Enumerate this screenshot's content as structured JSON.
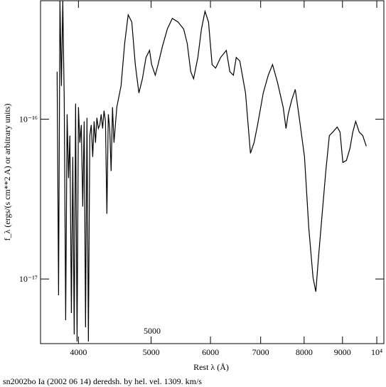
{
  "chart_data": {
    "type": "line",
    "x_scale": "log",
    "y_scale": "log",
    "x_label": "Rest λ (Å)",
    "y_label": "f_λ (ergs/(s cm**2 A) or arbitrary units)",
    "caption": "sn2002bo Ia (2002 06 14) deredsh. by hel. vel.  1309. km/s",
    "annotation": "5000",
    "xlim": [
      3560,
      10220
    ],
    "ylim": [
      3.94e-18,
      5.52e-16
    ],
    "xticks": [
      4000,
      5000,
      6000,
      7000,
      8000,
      9000,
      {
        "value": 10000,
        "label": "10⁴"
      }
    ],
    "yticks": [
      {
        "value": 1e-17,
        "label": "10⁻¹⁷"
      },
      {
        "value": 1e-16,
        "label": "10⁻¹⁶"
      }
    ],
    "series": [
      {
        "color": "#000000",
        "x": [
          3746,
          3763,
          3779,
          3796,
          3812,
          3829,
          3846,
          3863,
          3880,
          3896,
          3914,
          3931,
          3948,
          3965,
          3983,
          4000,
          4017,
          4035,
          4053,
          4071,
          4088,
          4106,
          4124,
          4142,
          4160,
          4179,
          4197,
          4215,
          4233,
          4252,
          4271,
          4289,
          4308,
          4327,
          4346,
          4365,
          4384,
          4403,
          4422,
          4441,
          4461,
          4500,
          4559,
          4610,
          4660,
          4712,
          4763,
          4816,
          4868,
          4922,
          4976,
          5008,
          5064,
          5108,
          5175,
          5255,
          5336,
          5430,
          5526,
          5586,
          5647,
          5697,
          5772,
          5836,
          5900,
          5964,
          6030,
          6096,
          6190,
          6299,
          6368,
          6438,
          6494,
          6566,
          6682,
          6784,
          6859,
          6934,
          7056,
          7165,
          7260,
          7371,
          7501,
          7567,
          7617,
          7700,
          7785,
          7870,
          8009,
          8115,
          8222,
          8293,
          8348,
          8440,
          8551,
          8644,
          8739,
          8854,
          8932,
          9011,
          9109,
          9209,
          9290,
          9372,
          9474,
          9578,
          9683
        ],
        "values": [
          1.985e-16,
          7.9e-18,
          5.52e-16,
          1.618e-16,
          5.52e-16,
          1.318e-16,
          5.52e-18,
          1.074e-16,
          4.28e-17,
          7.9e-17,
          6.12e-18,
          5.81e-17,
          4.5e-18,
          1.252e-16,
          4.06e-18,
          1.19e-16,
          7.13e-17,
          9.21e-17,
          2.84e-17,
          9.7e-17,
          4.98e-18,
          1.021e-16,
          4.06e-18,
          7.9e-17,
          9.21e-17,
          5.81e-17,
          9.7e-17,
          7.13e-17,
          1.021e-16,
          8.75e-17,
          9.21e-17,
          1.074e-16,
          8.75e-17,
          1.131e-16,
          9.7e-17,
          2.56e-17,
          1.074e-16,
          8.75e-17,
          4.74e-17,
          1.19e-16,
          7.13e-17,
          1.19e-16,
          1.618e-16,
          2.989e-16,
          4.502e-16,
          4.063e-16,
          2.199e-16,
          1.46e-16,
          1.792e-16,
          2.436e-16,
          2.699e-16,
          2.199e-16,
          1.886e-16,
          2.199e-16,
          2.84e-16,
          3.668e-16,
          4.277e-16,
          4.063e-16,
          3.668e-16,
          2.989e-16,
          1.985e-16,
          1.792e-16,
          2.436e-16,
          3.668e-16,
          4.738e-16,
          4.063e-16,
          2.199e-16,
          2.089e-16,
          2.436e-16,
          2.699e-16,
          1.985e-16,
          1.886e-16,
          2.436e-16,
          2.315e-16,
          1.46e-16,
          6.12e-17,
          7.13e-17,
          9.21e-17,
          1.46e-16,
          1.886e-16,
          2.199e-16,
          1.703e-16,
          1.19e-16,
          8.75e-17,
          1.074e-16,
          1.318e-16,
          1.537e-16,
          1.074e-16,
          5.81e-17,
          2.09e-17,
          1.02e-17,
          8.32e-18,
          1.25e-17,
          2.31e-17,
          4.74e-17,
          7.9e-17,
          8.32e-17,
          8.94e-17,
          8.32e-17,
          5.36e-17,
          5.52e-17,
          6.57e-17,
          8.32e-17,
          9.7e-17,
          8.32e-17,
          7.9e-17,
          6.78e-17
        ]
      }
    ]
  }
}
